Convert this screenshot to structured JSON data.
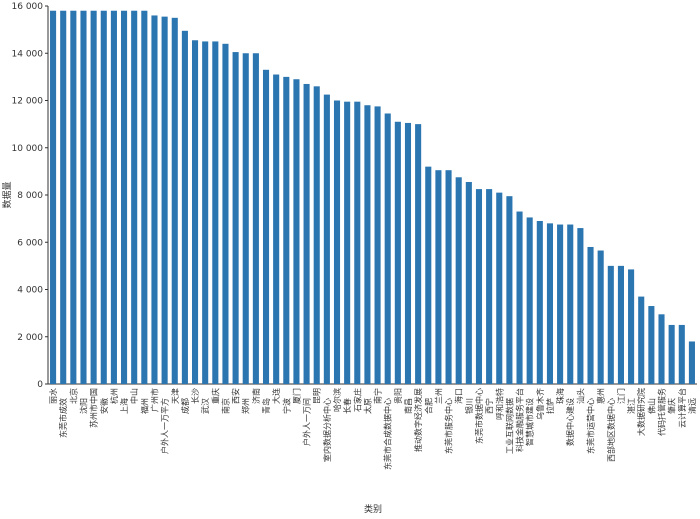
{
  "chart_data": {
    "type": "bar",
    "x_label": "类别",
    "y_label": "数据量",
    "color": "#2b75b0",
    "categories": [
      "丽水",
      "东莞市成效",
      "北京",
      "沈阳",
      "苏州市中国",
      "安徽",
      "杭州",
      "上海",
      "中山",
      "福州",
      "广州市",
      "户外人一万平方",
      "天津",
      "成都",
      "长沙",
      "武汉",
      "重庆",
      "南京",
      "西安",
      "郑州",
      "济南",
      "青岛",
      "大连",
      "宁波",
      "厦门",
      "户外人一万间",
      "昆明",
      "室内数据分析中心",
      "哈尔滨",
      "长春",
      "石家庄",
      "太原",
      "南宁",
      "东莞市合成数据中心",
      "贵阳",
      "南昌",
      "推动数字经济发展",
      "合肥",
      "兰州",
      "东莞市服务中心",
      "海口",
      "银川",
      "东莞市数据中心",
      "西宁",
      "呼和浩特",
      "工业互联网数据",
      "科技金融服务平台",
      "智慧城市建设",
      "乌鲁木齐",
      "拉萨",
      "珠海",
      "数据中心建设",
      "汕头",
      "东莞市运营中心",
      "惠州",
      "西部地区数据中心",
      "江门",
      "湛江",
      "大数据研究院",
      "佛山",
      "代码托管服务",
      "肇庆",
      "云计算平台",
      "清远"
    ],
    "values": [
      15800,
      15800,
      15800,
      15800,
      15800,
      15800,
      15800,
      15800,
      15800,
      15800,
      15600,
      15550,
      15500,
      14950,
      14550,
      14500,
      14500,
      14400,
      14050,
      14000,
      14000,
      13300,
      13100,
      13000,
      12900,
      12700,
      12600,
      12250,
      12000,
      11950,
      11950,
      11800,
      11750,
      11450,
      11100,
      11050,
      11000,
      9200,
      9050,
      9050,
      8750,
      8550,
      8250,
      8250,
      8100,
      7950,
      7300,
      7050,
      6900,
      6800,
      6750,
      6750,
      6600,
      5800,
      5650,
      5000,
      5000,
      4850,
      3700,
      3300,
      2950,
      2500,
      2500,
      1800
    ],
    "ylim": [
      0,
      16000
    ],
    "yticks": [
      0,
      {
        "value": 2000,
        "label": "2 000"
      },
      {
        "value": 4000,
        "label": "4 000"
      },
      {
        "value": 6000,
        "label": "6 000"
      },
      {
        "value": 8000,
        "label": "8 000"
      },
      {
        "value": 10000,
        "label": "10 000"
      },
      {
        "value": 12000,
        "label": "12 000"
      },
      {
        "value": 14000,
        "label": "14 000"
      },
      {
        "value": 16000,
        "label": "16 000"
      }
    ]
  }
}
